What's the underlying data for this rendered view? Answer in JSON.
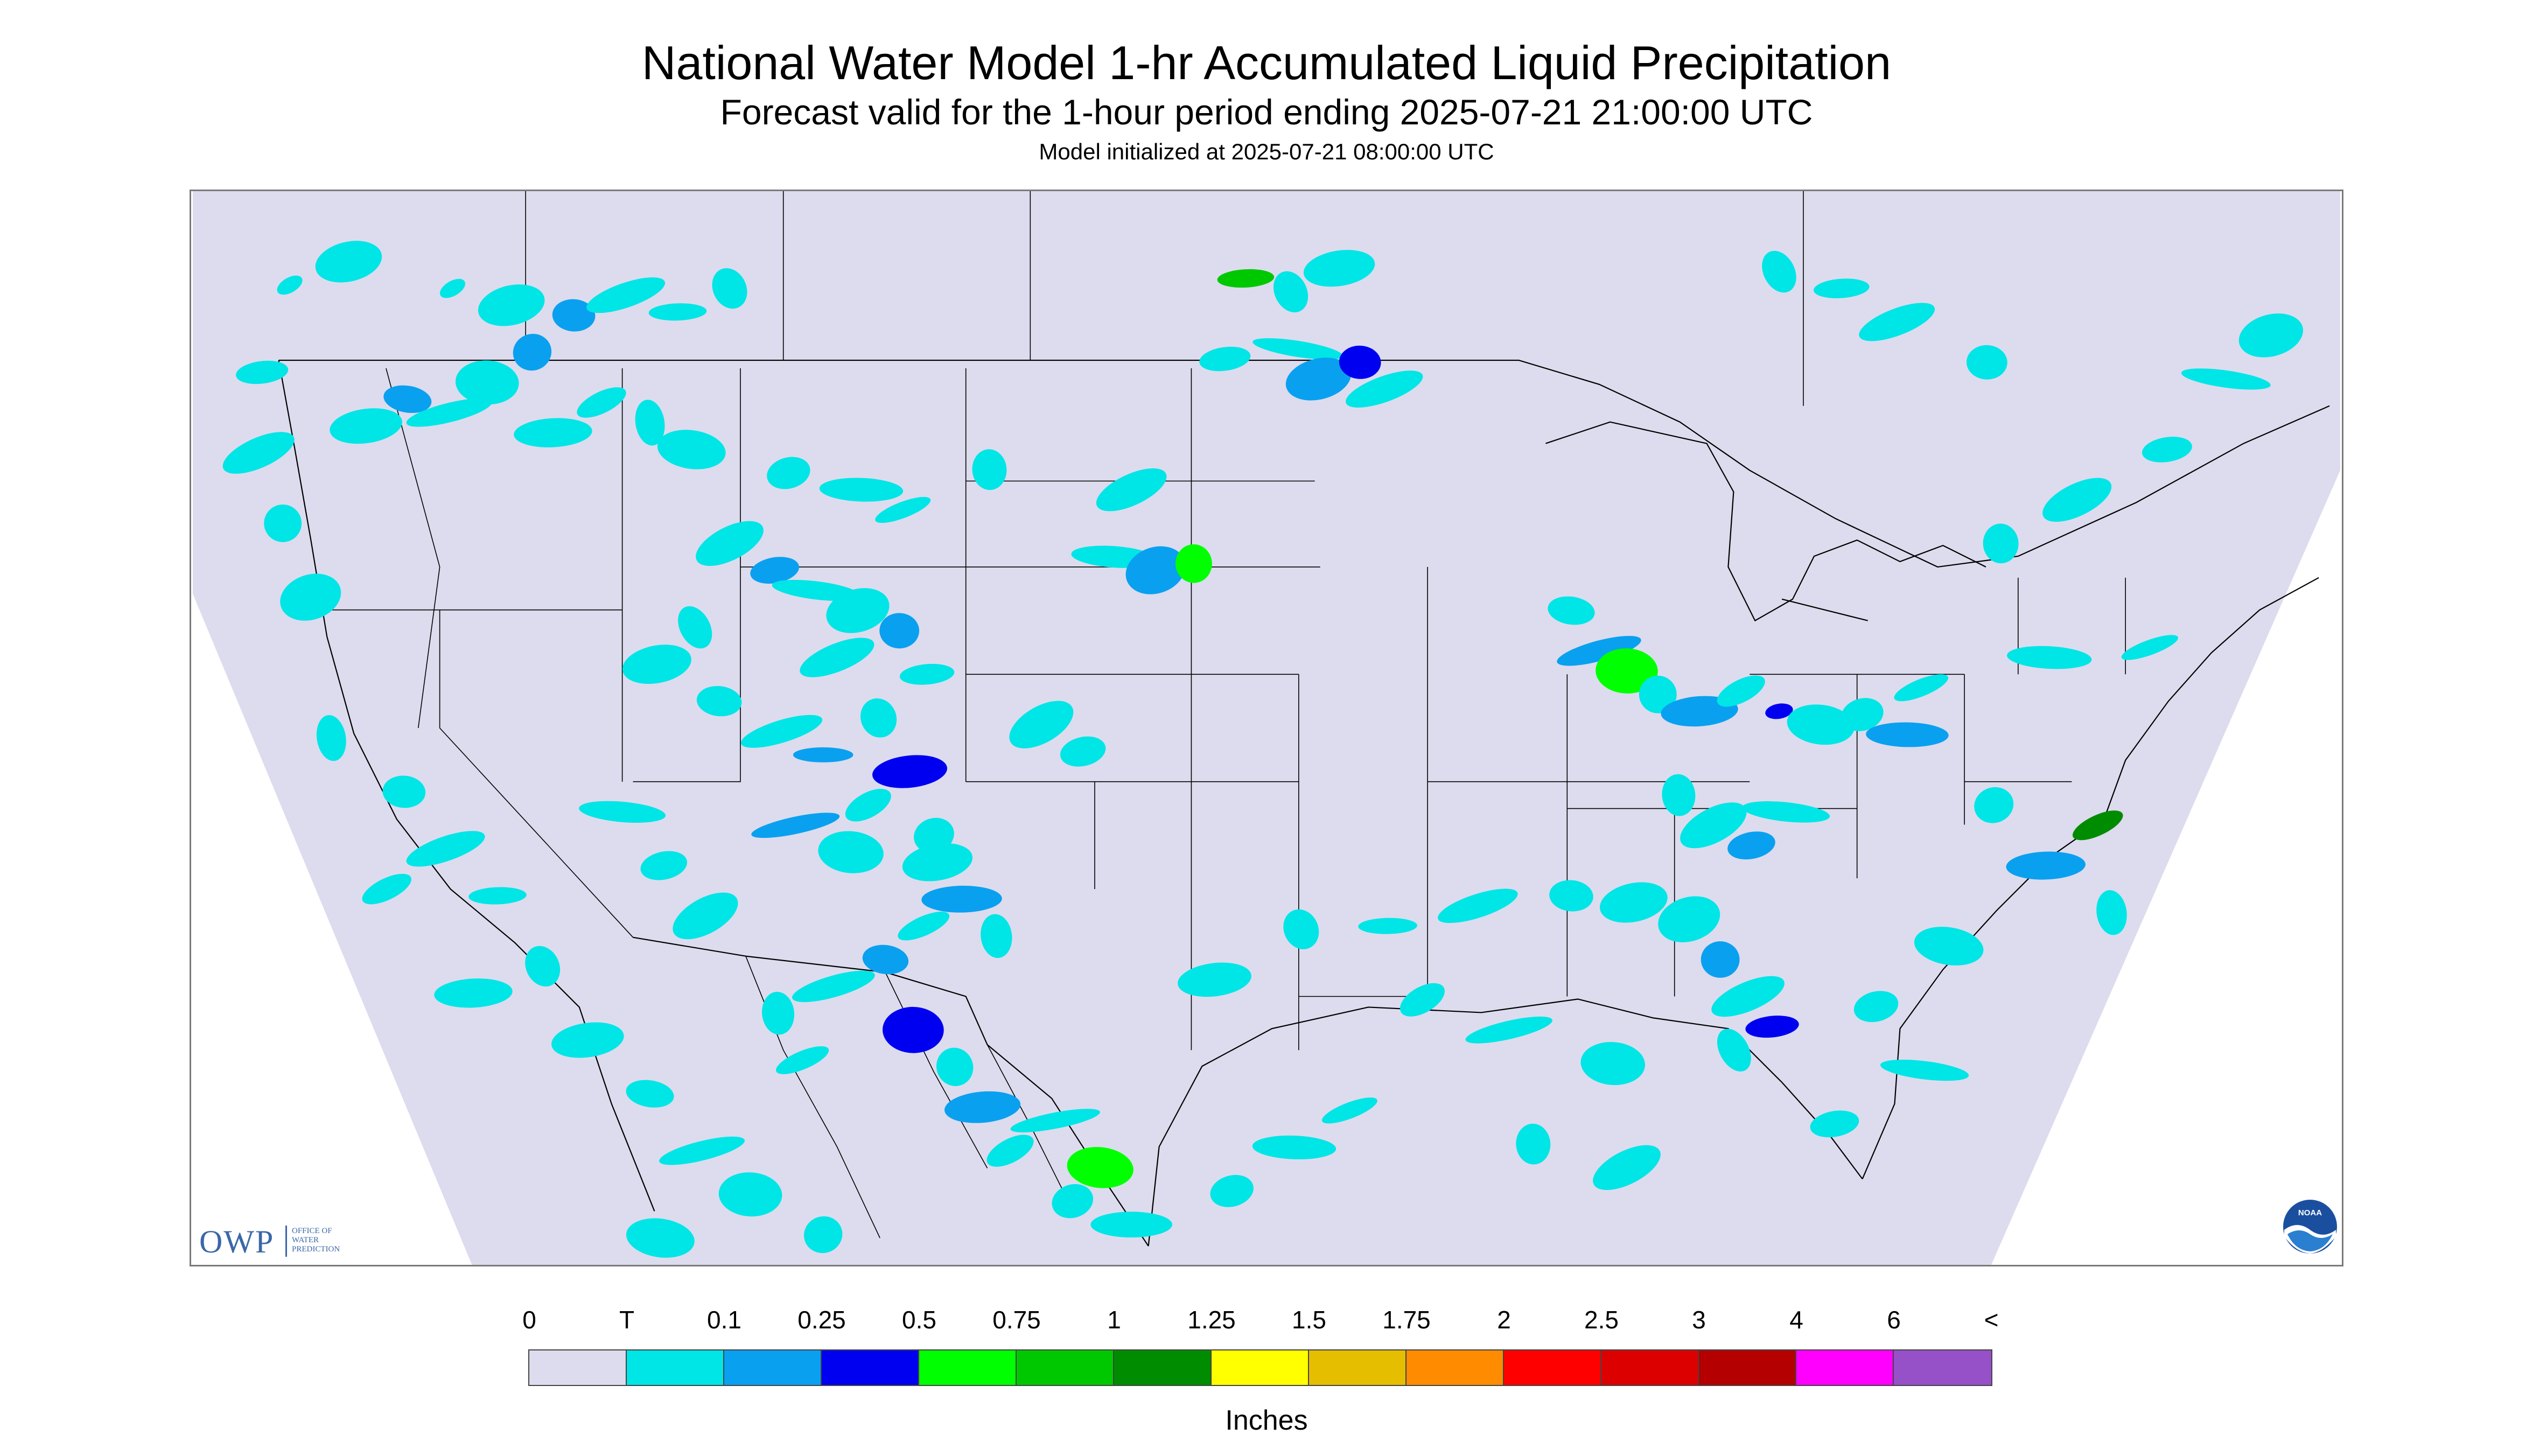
{
  "header": {
    "title": "National Water Model 1-hr Accumulated Liquid Precipitation",
    "subtitle": "Forecast valid for the 1-hour period ending 2025-07-21 21:00:00 UTC",
    "init_line": "Model initialized at 2025-07-21 08:00:00 UTC"
  },
  "map": {
    "region": "Continental United States",
    "domain_fill_color": "#dcdcee",
    "outside_domain_color": "#ffffff",
    "boundary_line_color": "#000000",
    "precip_cells": [
      {
        "lon": -118.5,
        "lat": 48.6,
        "class": "T"
      },
      {
        "lon": -116.8,
        "lat": 48.1,
        "class": "T"
      },
      {
        "lon": -115.0,
        "lat": 47.8,
        "class": "0.1"
      },
      {
        "lon": -113.5,
        "lat": 48.4,
        "class": "T"
      },
      {
        "lon": -112.0,
        "lat": 47.9,
        "class": "T"
      },
      {
        "lon": -110.5,
        "lat": 48.6,
        "class": "T"
      },
      {
        "lon": -121.0,
        "lat": 44.5,
        "class": "T"
      },
      {
        "lon": -119.8,
        "lat": 45.3,
        "class": "0.1"
      },
      {
        "lon": -118.6,
        "lat": 44.9,
        "class": "T"
      },
      {
        "lon": -117.5,
        "lat": 45.8,
        "class": "T"
      },
      {
        "lon": -116.2,
        "lat": 46.7,
        "class": "0.1"
      },
      {
        "lon": -115.6,
        "lat": 44.3,
        "class": "T"
      },
      {
        "lon": -114.2,
        "lat": 45.2,
        "class": "T"
      },
      {
        "lon": -112.8,
        "lat": 44.6,
        "class": "T"
      },
      {
        "lon": -111.6,
        "lat": 43.8,
        "class": "T"
      },
      {
        "lon": -108.8,
        "lat": 43.1,
        "class": "T"
      },
      {
        "lon": -106.7,
        "lat": 42.6,
        "class": "T"
      },
      {
        "lon": -105.5,
        "lat": 42.0,
        "class": "T"
      },
      {
        "lon": -103.0,
        "lat": 43.2,
        "class": "T"
      },
      {
        "lon": -110.5,
        "lat": 41.0,
        "class": "T"
      },
      {
        "lon": -109.2,
        "lat": 40.2,
        "class": "0.1"
      },
      {
        "lon": -108.0,
        "lat": 39.6,
        "class": "T"
      },
      {
        "lon": -106.8,
        "lat": 39.0,
        "class": "T"
      },
      {
        "lon": -105.6,
        "lat": 38.4,
        "class": "0.1"
      },
      {
        "lon": -107.4,
        "lat": 37.6,
        "class": "T"
      },
      {
        "lon": -104.8,
        "lat": 37.1,
        "class": "T"
      },
      {
        "lon": -111.5,
        "lat": 38.5,
        "class": "T"
      },
      {
        "lon": -112.6,
        "lat": 37.4,
        "class": "T"
      },
      {
        "lon": -110.8,
        "lat": 36.3,
        "class": "T"
      },
      {
        "lon": -109.0,
        "lat": 35.4,
        "class": "T"
      },
      {
        "lon": -107.8,
        "lat": 34.7,
        "class": "0.1"
      },
      {
        "lon": -106.2,
        "lat": 35.8,
        "class": "T"
      },
      {
        "lon": -105.3,
        "lat": 34.2,
        "class": "0.25"
      },
      {
        "lon": -106.5,
        "lat": 33.2,
        "class": "T"
      },
      {
        "lon": -108.6,
        "lat": 32.6,
        "class": "0.1"
      },
      {
        "lon": -107.0,
        "lat": 31.8,
        "class": "T"
      },
      {
        "lon": -104.6,
        "lat": 32.3,
        "class": "T"
      },
      {
        "lon": -103.8,
        "lat": 30.4,
        "class": "0.1"
      },
      {
        "lon": -104.9,
        "lat": 29.6,
        "class": "T"
      },
      {
        "lon": -102.8,
        "lat": 29.3,
        "class": "T"
      },
      {
        "lon": -101.5,
        "lat": 35.6,
        "class": "T"
      },
      {
        "lon": -100.3,
        "lat": 34.8,
        "class": "T"
      },
      {
        "lon": -99.4,
        "lat": 40.6,
        "class": "T"
      },
      {
        "lon": -98.2,
        "lat": 40.2,
        "class": "0.1"
      },
      {
        "lon": -97.1,
        "lat": 40.4,
        "class": "0.5"
      },
      {
        "lon": -98.9,
        "lat": 42.6,
        "class": "T"
      },
      {
        "lon": -96.2,
        "lat": 46.5,
        "class": "T"
      },
      {
        "lon": -94.1,
        "lat": 46.8,
        "class": "T"
      },
      {
        "lon": -93.5,
        "lat": 45.9,
        "class": "0.1"
      },
      {
        "lon": -92.3,
        "lat": 46.4,
        "class": "0.25"
      },
      {
        "lon": -91.6,
        "lat": 45.6,
        "class": "T"
      },
      {
        "lon": -95.6,
        "lat": 48.9,
        "class": "0.75"
      },
      {
        "lon": -94.3,
        "lat": 48.5,
        "class": "T"
      },
      {
        "lon": -92.9,
        "lat": 49.2,
        "class": "T"
      },
      {
        "lon": -86.2,
        "lat": 39.0,
        "class": "T"
      },
      {
        "lon": -85.4,
        "lat": 37.8,
        "class": "0.1"
      },
      {
        "lon": -84.6,
        "lat": 37.2,
        "class": "0.5"
      },
      {
        "lon": -83.7,
        "lat": 36.5,
        "class": "T"
      },
      {
        "lon": -82.5,
        "lat": 36.0,
        "class": "0.1"
      },
      {
        "lon": -81.3,
        "lat": 36.6,
        "class": "T"
      },
      {
        "lon": -80.2,
        "lat": 36.0,
        "class": "0.25"
      },
      {
        "lon": -79.0,
        "lat": 35.6,
        "class": "T"
      },
      {
        "lon": -77.8,
        "lat": 35.9,
        "class": "T"
      },
      {
        "lon": -76.5,
        "lat": 35.3,
        "class": "0.1"
      },
      {
        "lon": -76.1,
        "lat": 36.7,
        "class": "T"
      },
      {
        "lon": -83.1,
        "lat": 33.5,
        "class": "T"
      },
      {
        "lon": -82.1,
        "lat": 32.6,
        "class": "T"
      },
      {
        "lon": -81.0,
        "lat": 32.0,
        "class": "0.1"
      },
      {
        "lon": -80.0,
        "lat": 33.0,
        "class": "T"
      },
      {
        "lon": -82.8,
        "lat": 29.8,
        "class": "T"
      },
      {
        "lon": -81.9,
        "lat": 28.6,
        "class": "0.1"
      },
      {
        "lon": -81.1,
        "lat": 27.5,
        "class": "T"
      },
      {
        "lon": -80.4,
        "lat": 26.6,
        "class": "0.25"
      },
      {
        "lon": -81.5,
        "lat": 25.9,
        "class": "T"
      },
      {
        "lon": -84.4,
        "lat": 30.3,
        "class": "T"
      },
      {
        "lon": -86.2,
        "lat": 30.5,
        "class": "T"
      },
      {
        "lon": -88.9,
        "lat": 30.2,
        "class": "T"
      },
      {
        "lon": -91.5,
        "lat": 29.6,
        "class": "T"
      },
      {
        "lon": -94.0,
        "lat": 29.5,
        "class": "T"
      },
      {
        "lon": -96.5,
        "lat": 28.0,
        "class": "T"
      },
      {
        "lon": -90.5,
        "lat": 27.4,
        "class": "T"
      },
      {
        "lon": -88.0,
        "lat": 26.5,
        "class": "T"
      },
      {
        "lon": -85.0,
        "lat": 25.5,
        "class": "T"
      },
      {
        "lon": -74.0,
        "lat": 33.2,
        "class": "T"
      },
      {
        "lon": -72.5,
        "lat": 31.4,
        "class": "0.1"
      },
      {
        "lon": -71.0,
        "lat": 32.6,
        "class": "1"
      },
      {
        "lon": -70.6,
        "lat": 30.0,
        "class": "T"
      },
      {
        "lon": -75.3,
        "lat": 29.0,
        "class": "T"
      },
      {
        "lon": -77.4,
        "lat": 27.2,
        "class": "T"
      },
      {
        "lon": -72.4,
        "lat": 37.6,
        "class": "T"
      },
      {
        "lon": -69.5,
        "lat": 37.9,
        "class": "T"
      },
      {
        "lon": -73.8,
        "lat": 41.0,
        "class": "T"
      },
      {
        "lon": -71.6,
        "lat": 42.3,
        "class": "T"
      },
      {
        "lon": -69.0,
        "lat": 43.8,
        "class": "T"
      },
      {
        "lon": -67.3,
        "lat": 45.9,
        "class": "T"
      },
      {
        "lon": -66.0,
        "lat": 47.2,
        "class": "T"
      },
      {
        "lon": -74.2,
        "lat": 46.4,
        "class": "T"
      },
      {
        "lon": -76.8,
        "lat": 47.6,
        "class": "T"
      },
      {
        "lon": -78.4,
        "lat": 48.6,
        "class": "T"
      },
      {
        "lon": -80.2,
        "lat": 49.1,
        "class": "T"
      },
      {
        "lon": -104.5,
        "lat": 31.5,
        "class": "T"
      },
      {
        "lon": -106.0,
        "lat": 28.6,
        "class": "0.1"
      },
      {
        "lon": -107.5,
        "lat": 27.8,
        "class": "T"
      },
      {
        "lon": -105.2,
        "lat": 26.5,
        "class": "0.25"
      },
      {
        "lon": -104.0,
        "lat": 25.4,
        "class": "T"
      },
      {
        "lon": -103.2,
        "lat": 24.2,
        "class": "0.1"
      },
      {
        "lon": -102.4,
        "lat": 22.9,
        "class": "T"
      },
      {
        "lon": -101.1,
        "lat": 23.8,
        "class": "T"
      },
      {
        "lon": -99.8,
        "lat": 22.4,
        "class": "0.5"
      },
      {
        "lon": -100.6,
        "lat": 21.4,
        "class": "T"
      },
      {
        "lon": -98.9,
        "lat": 20.7,
        "class": "T"
      },
      {
        "lon": -108.4,
        "lat": 25.6,
        "class": "T"
      },
      {
        "lon": -109.1,
        "lat": 27.0,
        "class": "T"
      },
      {
        "lon": -111.2,
        "lat": 29.9,
        "class": "T"
      },
      {
        "lon": -112.4,
        "lat": 31.4,
        "class": "T"
      },
      {
        "lon": -113.6,
        "lat": 33.0,
        "class": "T"
      },
      {
        "lon": -122.6,
        "lat": 39.4,
        "class": "T"
      },
      {
        "lon": -123.4,
        "lat": 41.6,
        "class": "T"
      },
      {
        "lon": -124.1,
        "lat": 43.7,
        "class": "T"
      },
      {
        "lon": -124.0,
        "lat": 46.1,
        "class": "T"
      },
      {
        "lon": -123.2,
        "lat": 48.7,
        "class": "T"
      },
      {
        "lon": -121.5,
        "lat": 49.4,
        "class": "T"
      },
      {
        "lon": -119.9,
        "lat": 33.6,
        "class": "T"
      },
      {
        "lon": -118.7,
        "lat": 31.9,
        "class": "T"
      },
      {
        "lon": -117.2,
        "lat": 30.5,
        "class": "T"
      },
      {
        "lon": -115.9,
        "lat": 28.4,
        "class": "T"
      },
      {
        "lon": -114.6,
        "lat": 26.2,
        "class": "T"
      },
      {
        "lon": -112.8,
        "lat": 24.6,
        "class": "T"
      },
      {
        "lon": -111.3,
        "lat": 22.9,
        "class": "T"
      },
      {
        "lon": -109.9,
        "lat": 21.6,
        "class": "T"
      },
      {
        "lon": -107.8,
        "lat": 20.4,
        "class": "T"
      },
      {
        "lon": -117.9,
        "lat": 27.6,
        "class": "T"
      },
      {
        "lon": -120.4,
        "lat": 30.7,
        "class": "T"
      },
      {
        "lon": -122.0,
        "lat": 35.2,
        "class": "T"
      },
      {
        "lon": -112.5,
        "lat": 20.3,
        "class": "T"
      },
      {
        "lon": -96.0,
        "lat": 21.7,
        "class": "T"
      },
      {
        "lon": -94.2,
        "lat": 23.0,
        "class": "T"
      },
      {
        "lon": -92.6,
        "lat": 24.1,
        "class": "T"
      },
      {
        "lon": -87.3,
        "lat": 23.1,
        "class": "T"
      },
      {
        "lon": -84.6,
        "lat": 22.4,
        "class": "T"
      },
      {
        "lon": -78.6,
        "lat": 23.7,
        "class": "T"
      },
      {
        "lon": -76.0,
        "lat": 25.3,
        "class": "T"
      }
    ]
  },
  "logos": {
    "owp_letters": "OWP",
    "owp_text": "OFFICE OF\nWATER\nPREDICTION",
    "noaa_text": "NOAA"
  },
  "legend": {
    "labels": [
      "0",
      "T",
      "0.1",
      "0.25",
      "0.5",
      "0.75",
      "1",
      "1.25",
      "1.5",
      "1.75",
      "2",
      "2.5",
      "3",
      "4",
      "6",
      "<"
    ],
    "colors": [
      "#dcdcee",
      "#00e5e5",
      "#0aa0f0",
      "#0000f0",
      "#00ff00",
      "#00c800",
      "#008c00",
      "#ffff00",
      "#e6be00",
      "#ff8c00",
      "#ff0000",
      "#dc0000",
      "#b40000",
      "#ff00ff",
      "#9650c8"
    ],
    "unit": "Inches"
  }
}
